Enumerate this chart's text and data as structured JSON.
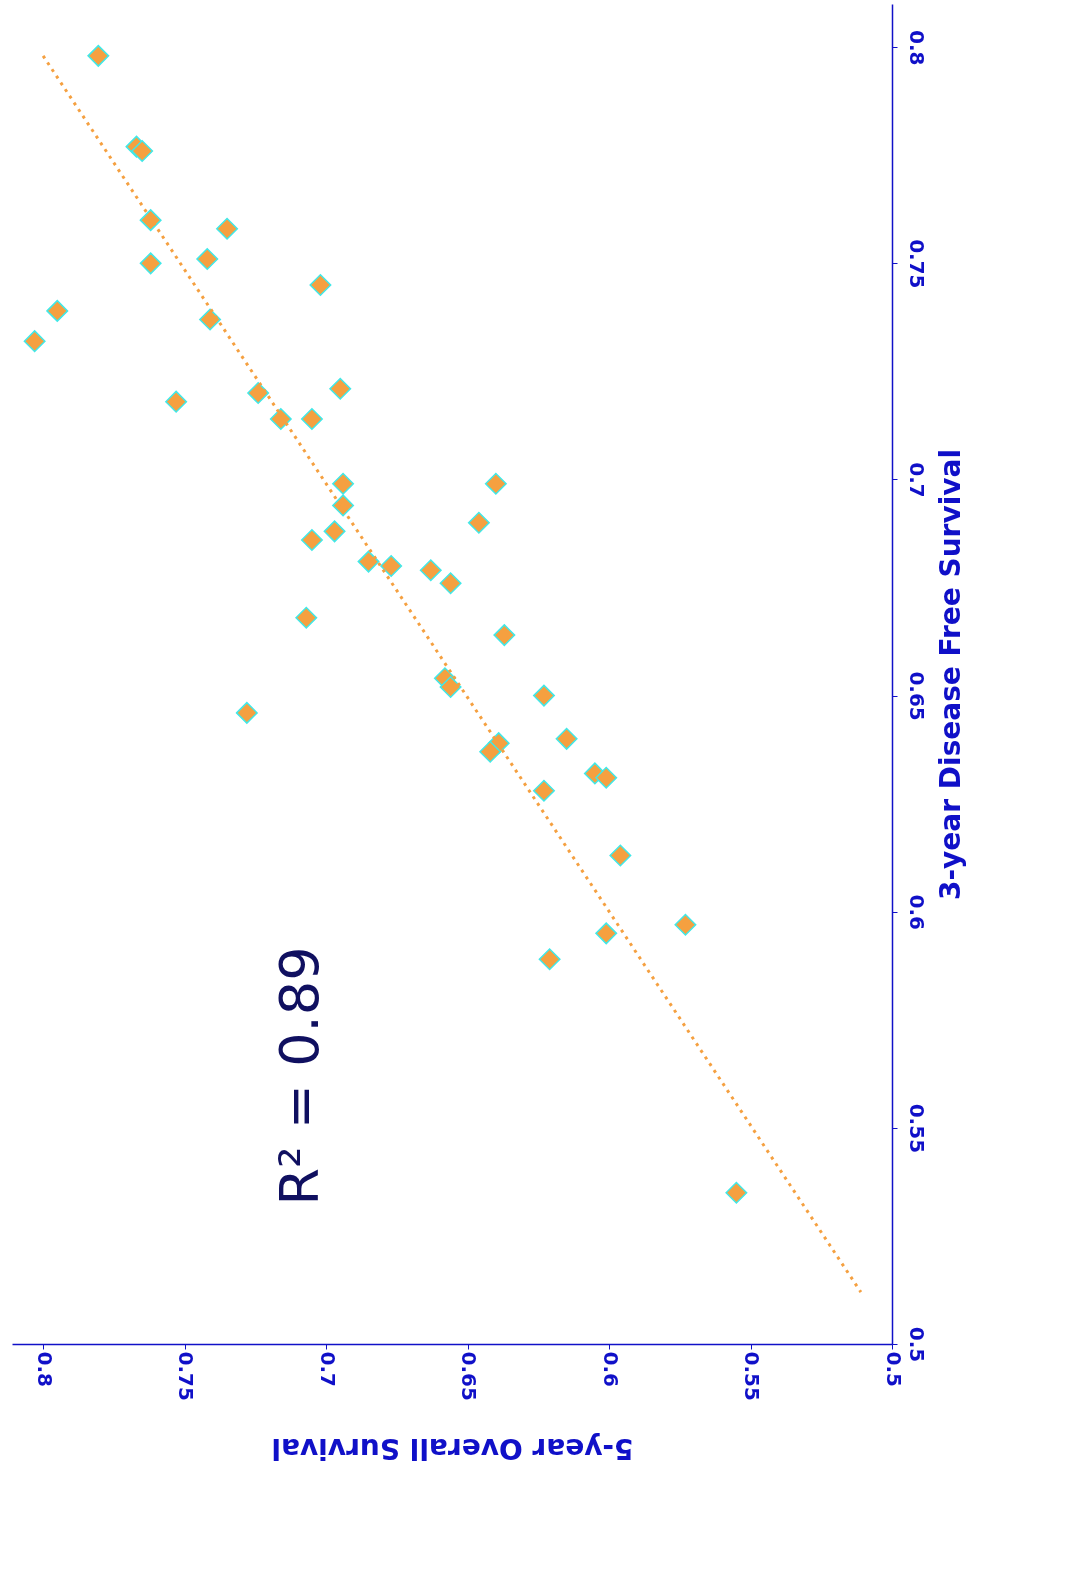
{
  "chart_data": {
    "type": "scatter",
    "xlabel": "5-year Overall Survival",
    "ylabel": "3-year Disease Free Survival",
    "xlim": [
      0.811,
      0.5
    ],
    "ylim": [
      0.5,
      0.81
    ],
    "xticks": [
      0.5,
      0.55,
      0.6,
      0.65,
      0.7,
      0.75,
      0.8
    ],
    "yticks": [
      0.5,
      0.55,
      0.6,
      0.65,
      0.7,
      0.75,
      0.8
    ],
    "grid": false,
    "annotations": [
      "R² = 0.89"
    ],
    "series": [
      {
        "type": "scatter",
        "marker": "diamond",
        "color": "#f5a040",
        "x": [
          0.7805,
          0.767,
          0.765,
          0.762,
          0.735,
          0.762,
          0.742,
          0.702,
          0.795,
          0.803,
          0.741,
          0.753,
          0.724,
          0.695,
          0.716,
          0.705,
          0.694,
          0.64,
          0.694,
          0.646,
          0.697,
          0.705,
          0.685,
          0.677,
          0.663,
          0.656,
          0.707,
          0.637,
          0.658,
          0.656,
          0.623,
          0.728,
          0.639,
          0.642,
          0.615,
          0.605,
          0.601,
          0.623,
          0.596,
          0.601,
          0.573,
          0.621,
          0.555
        ],
        "values": [
          0.798,
          0.777,
          0.776,
          0.76,
          0.758,
          0.75,
          0.751,
          0.745,
          0.739,
          0.732,
          0.737,
          0.718,
          0.72,
          0.721,
          0.714,
          0.714,
          0.699,
          0.699,
          0.694,
          0.69,
          0.688,
          0.686,
          0.681,
          0.68,
          0.679,
          0.676,
          0.668,
          0.664,
          0.654,
          0.652,
          0.65,
          0.646,
          0.639,
          0.637,
          0.64,
          0.632,
          0.631,
          0.628,
          0.613,
          0.595,
          0.597,
          0.589,
          0.535
        ]
      },
      {
        "type": "line",
        "color": "#f5a040",
        "line_style": "dotted",
        "x": [
          0.511,
          0.8
        ],
        "values": [
          0.512,
          0.798
        ]
      }
    ]
  }
}
